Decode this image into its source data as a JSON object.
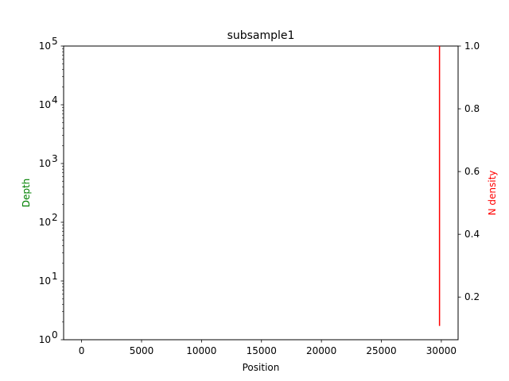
{
  "chart_data": {
    "type": "line",
    "title": "subsample1",
    "xlabel": "Position",
    "ylabel": "Depth",
    "ylabel_color": "#008000",
    "y2label": "N density",
    "y2label_color": "#ff0000",
    "xlim": [
      -1500,
      31400
    ],
    "x_ticks": [
      0,
      5000,
      10000,
      15000,
      20000,
      25000,
      30000
    ],
    "x_tick_labels": [
      "0",
      "5000",
      "10000",
      "15000",
      "20000",
      "25000",
      "30000"
    ],
    "y_scale": "log",
    "ylim": [
      1,
      100000
    ],
    "y_ticks": [
      1,
      10,
      100,
      1000,
      10000,
      100000
    ],
    "y_tick_labels": [
      {
        "base": "10",
        "exp": "0"
      },
      {
        "base": "10",
        "exp": "1"
      },
      {
        "base": "10",
        "exp": "2"
      },
      {
        "base": "10",
        "exp": "3"
      },
      {
        "base": "10",
        "exp": "4"
      },
      {
        "base": "10",
        "exp": "5"
      }
    ],
    "y2_scale": "linear",
    "y2lim": [
      0.064,
      1.0
    ],
    "y2_ticks": [
      0.2,
      0.4,
      0.6,
      0.8,
      1.0
    ],
    "y2_tick_labels": [
      "0.2",
      "0.4",
      "0.6",
      "0.8",
      "1.0"
    ],
    "grid": false,
    "series": [
      {
        "axis": "right",
        "color": "#ff0000",
        "x": [
          29850,
          29850
        ],
        "y": [
          0.108,
          1.0
        ]
      }
    ]
  }
}
